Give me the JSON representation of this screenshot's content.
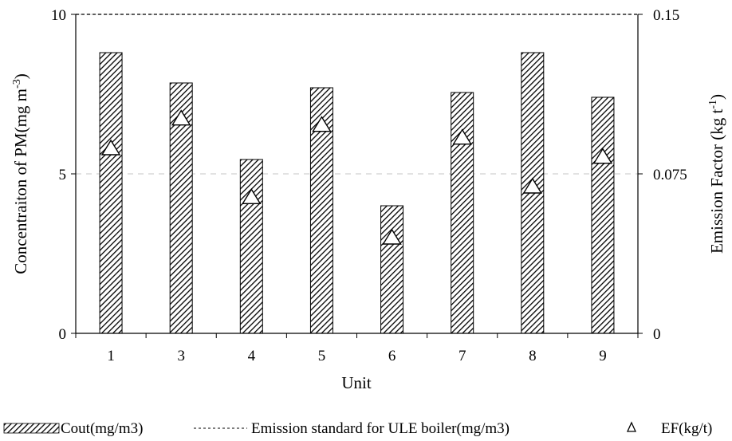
{
  "chart_data": {
    "type": "bar",
    "xlabel": "Unit",
    "ylabel": "Concentraiton of PM(mg m",
    "ylabel_sup": "-3",
    "ylabel_suffix": ")",
    "y2label": "Emission Factor (kg t",
    "y2label_sup": "-1",
    "y2label_suffix": ")",
    "categories": [
      "1",
      "3",
      "4",
      "5",
      "6",
      "7",
      "8",
      "9"
    ],
    "ylim": [
      0,
      10
    ],
    "y2lim": [
      0,
      0.15
    ],
    "yticks": [
      "0",
      "5",
      "10"
    ],
    "y2ticks": [
      "0",
      "0.075",
      "0.15"
    ],
    "grid": "horizontal dashed",
    "legend_position": "bottom",
    "series": [
      {
        "name": "Cout(mg/m3)",
        "type": "bar",
        "axis": "left",
        "values": [
          8.8,
          7.85,
          5.45,
          7.7,
          4.0,
          7.55,
          8.8,
          7.4
        ]
      },
      {
        "name": "EF(kg/t)",
        "type": "scatter",
        "marker": "triangle",
        "axis": "right",
        "values": [
          0.087,
          0.101,
          0.064,
          0.098,
          0.045,
          0.092,
          0.069,
          0.083
        ]
      },
      {
        "name": "Emission standard for ULE boiler(mg/m3)",
        "type": "line",
        "style": "dashed",
        "axis": "left",
        "values": [
          10,
          10,
          10,
          10,
          10,
          10,
          10,
          10
        ]
      }
    ],
    "colors": {
      "bar_fill": "#ffffff",
      "bar_hatch": "#000000",
      "grid": "#d0d0d0",
      "marker_fill": "#ffffff"
    }
  }
}
